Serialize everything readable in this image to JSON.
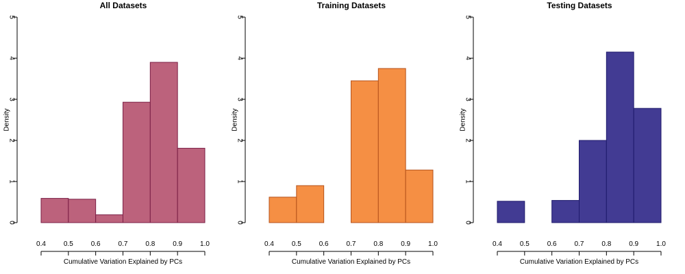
{
  "chart_data": [
    {
      "type": "bar",
      "title": "All Datasets",
      "xlabel": "Cumulative Variation Explained by PCs",
      "ylabel": "Density",
      "xlim": [
        0.4,
        1.0
      ],
      "ylim": [
        0,
        5
      ],
      "xticks": [
        "0.4",
        "0.5",
        "0.6",
        "0.7",
        "0.8",
        "0.9",
        "1.0"
      ],
      "yticks": [
        "0",
        "1",
        "2",
        "3",
        "4",
        "5"
      ],
      "bins": [
        [
          0.4,
          0.5
        ],
        [
          0.5,
          0.6
        ],
        [
          0.6,
          0.7
        ],
        [
          0.7,
          0.8
        ],
        [
          0.8,
          0.9
        ],
        [
          0.9,
          1.0
        ]
      ],
      "values": [
        0.59,
        0.57,
        0.19,
        2.93,
        3.9,
        1.81
      ],
      "fill": "#bc627c",
      "stroke": "#7a1e45"
    },
    {
      "type": "bar",
      "title": "Training Datasets",
      "xlabel": "Cumulative Variation Explained by PCs",
      "ylabel": "Density",
      "xlim": [
        0.4,
        1.0
      ],
      "ylim": [
        0,
        5
      ],
      "xticks": [
        "0.4",
        "0.5",
        "0.6",
        "0.7",
        "0.8",
        "0.9",
        "1.0"
      ],
      "yticks": [
        "0",
        "1",
        "2",
        "3",
        "4",
        "5"
      ],
      "bins": [
        [
          0.4,
          0.5
        ],
        [
          0.5,
          0.6
        ],
        [
          0.6,
          0.7
        ],
        [
          0.7,
          0.8
        ],
        [
          0.8,
          0.9
        ],
        [
          0.9,
          1.0
        ]
      ],
      "values": [
        0.62,
        0.9,
        0.0,
        3.45,
        3.75,
        1.28
      ],
      "fill": "#f58f44",
      "stroke": "#b5521b"
    },
    {
      "type": "bar",
      "title": "Testing Datasets",
      "xlabel": "Cumulative Variation Explained by PCs",
      "ylabel": "Density",
      "xlim": [
        0.4,
        1.0
      ],
      "ylim": [
        0,
        5
      ],
      "xticks": [
        "0.4",
        "0.5",
        "0.6",
        "0.7",
        "0.8",
        "0.9",
        "1.0"
      ],
      "yticks": [
        "0",
        "1",
        "2",
        "3",
        "4",
        "5"
      ],
      "bins": [
        [
          0.4,
          0.5
        ],
        [
          0.5,
          0.6
        ],
        [
          0.6,
          0.7
        ],
        [
          0.7,
          0.8
        ],
        [
          0.8,
          0.9
        ],
        [
          0.9,
          1.0
        ]
      ],
      "values": [
        0.52,
        0.0,
        0.54,
        2.0,
        4.15,
        2.78
      ],
      "fill": "#423b93",
      "stroke": "#1f1a6b"
    }
  ]
}
